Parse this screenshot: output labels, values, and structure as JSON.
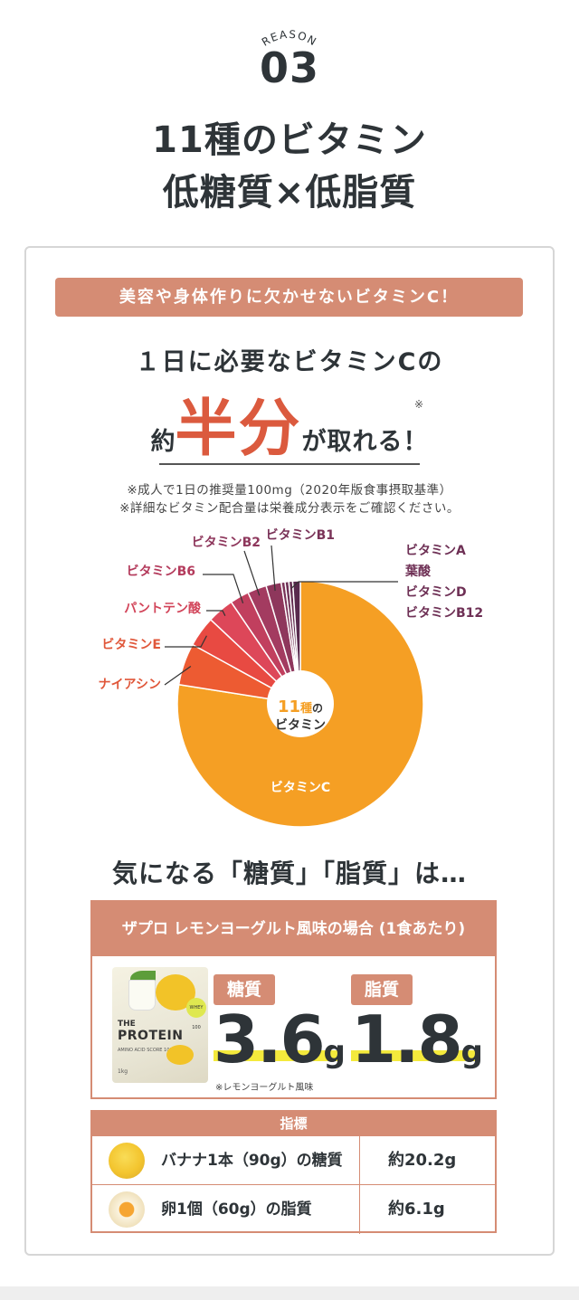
{
  "header": {
    "reason_label": "REASON",
    "reason_number": "03",
    "headline_line1": "11種のビタミン",
    "headline_line2": "低糖質×低脂質"
  },
  "vitamin_section": {
    "banner": "美容や身体作りに欠かせないビタミンC！",
    "line1": "１日に必要なビタミンCの",
    "line2_prefix": "約",
    "line2_big": "半分",
    "line2_suffix": "が取れる！",
    "footnote_mark": "※",
    "note1": "※成人で1日の推奨量100mg（2020年版食事摂取基準）",
    "note2": "※詳細なビタミン配合量は栄養成分表示をご確認ください。"
  },
  "chart_data": {
    "type": "pie",
    "center_label_count": "11",
    "center_label_unit": "種",
    "center_label_no": "の",
    "center_label_text": "ビタミン",
    "slices": [
      {
        "name": "ビタミンC",
        "value": 77.5,
        "color": "#f59f24"
      },
      {
        "name": "ナイアシン",
        "value": 5.5,
        "color": "#ed5b32"
      },
      {
        "name": "ビタミンE",
        "value": 4,
        "color": "#e84a42"
      },
      {
        "name": "パントテン酸",
        "value": 3.5,
        "color": "#dd4759"
      },
      {
        "name": "ビタミンB6",
        "value": 2.5,
        "color": "#c13f5e"
      },
      {
        "name": "ビタミンB2",
        "value": 2.5,
        "color": "#a33b60"
      },
      {
        "name": "ビタミンB1",
        "value": 2,
        "color": "#8e375c"
      },
      {
        "name": "ビタミンA",
        "value": 0.5,
        "color": "#7a3358"
      },
      {
        "name": "葉酸",
        "value": 0.5,
        "color": "#6e3055"
      },
      {
        "name": "ビタミンD",
        "value": 0.5,
        "color": "#632d50"
      },
      {
        "name": "ビタミンB12",
        "value": 1,
        "color": "#582a4d"
      }
    ]
  },
  "nutrition": {
    "concern_title": "気になる「糖質」「脂質」は…",
    "box_title": "ザプロ レモンヨーグルト風味の場合 (1食あたり)",
    "product": {
      "the": "THE",
      "name": "PROTEIN",
      "sub": "AMINO ACID SCORE 100",
      "weight": "1kg",
      "badge": "WHEY 100"
    },
    "sugar_label": "糖質",
    "sugar_value": "3.6",
    "sugar_unit": "g",
    "fat_label": "脂質",
    "fat_value": "1.8",
    "fat_unit": "g",
    "flavor_note": "※レモンヨーグルト風味"
  },
  "index_table": {
    "header": "指標",
    "rows": [
      {
        "icon": "banana-icon",
        "label": "バナナ1本（90g）の糖質",
        "value": "約20.2g"
      },
      {
        "icon": "egg-icon",
        "label": "卵1個（60g）の脂質",
        "value": "約6.1g"
      }
    ]
  }
}
